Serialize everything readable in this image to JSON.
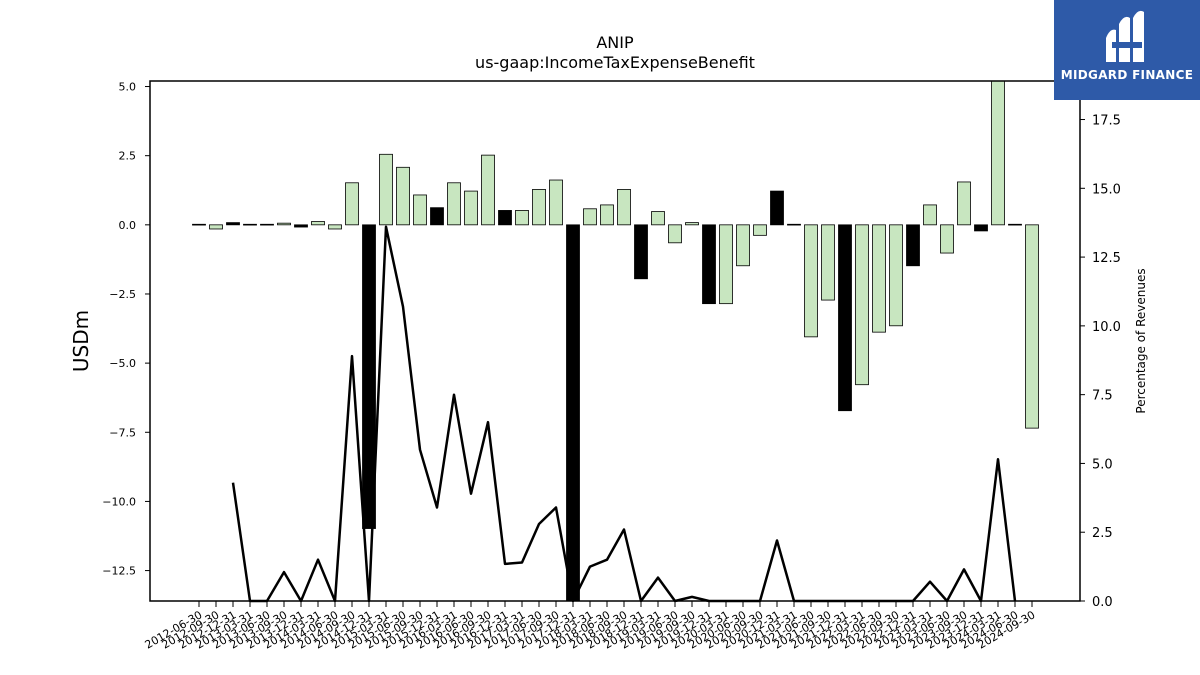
{
  "chart_data": {
    "type": "bar",
    "title": "ANIP",
    "subtitle": "us-gaap:IncomeTaxExpenseBenefit",
    "ylabel": "USDm",
    "y2label": "Percentage of Revenues",
    "ylim": [
      -13.6,
      5.2
    ],
    "y2lim": [
      0,
      18.9
    ],
    "yticks": [
      "5.0",
      "2.5",
      "0.0",
      "−2.5",
      "−5.0",
      "−7.5",
      "−10.0",
      "−12.5"
    ],
    "y2ticks": [
      "0.0",
      "2.5",
      "5.0",
      "7.5",
      "10.0",
      "12.5",
      "15.0",
      "17.5"
    ],
    "categories": [
      "2012-06-30",
      "2012-09-30",
      "2012-12-31",
      "2013-03-31",
      "2013-06-30",
      "2013-09-30",
      "2013-12-31",
      "2014-03-31",
      "2014-06-30",
      "2014-09-30",
      "2014-12-31",
      "2015-03-31",
      "2015-06-30",
      "2015-09-30",
      "2015-12-31",
      "2016-03-31",
      "2016-06-30",
      "2016-09-30",
      "2016-12-31",
      "2017-03-31",
      "2017-06-30",
      "2017-09-30",
      "2017-12-31",
      "2018-03-31",
      "2018-06-30",
      "2018-09-30",
      "2018-12-31",
      "2019-03-31",
      "2019-06-30",
      "2019-09-30",
      "2019-12-31",
      "2020-03-31",
      "2020-06-30",
      "2020-09-30",
      "2020-12-31",
      "2021-03-31",
      "2021-06-30",
      "2021-09-30",
      "2021-12-31",
      "2022-03-31",
      "2022-06-30",
      "2022-09-30",
      "2022-12-31",
      "2023-03-31",
      "2023-06-30",
      "2023-09-30",
      "2023-12-31",
      "2024-03-31",
      "2024-06-30",
      "2024-09-30"
    ],
    "series": [
      {
        "values": [
          0.02,
          -0.15,
          0.08,
          0.02,
          0.02,
          0.06,
          -0.08,
          0.12,
          -0.15,
          1.52,
          -10.98,
          2.55,
          2.08,
          1.08,
          0.62,
          1.52,
          1.22,
          2.52,
          0.52,
          0.52,
          1.28,
          1.62,
          -13.6,
          0.58,
          0.72,
          1.28,
          -1.95,
          0.48,
          -0.65,
          0.08,
          -2.85,
          -2.85,
          -1.48,
          -0.38,
          1.22,
          0.02,
          -4.05,
          -2.72,
          -6.72,
          -5.78,
          -3.88,
          -3.65,
          -1.48,
          0.72,
          -1.02,
          1.55,
          -0.22,
          5.2,
          0.02,
          -7.35
        ],
        "colors": [
          "light",
          "light",
          "dark",
          "light",
          "light",
          "light",
          "dark",
          "light",
          "light",
          "light",
          "dark",
          "light",
          "light",
          "light",
          "dark",
          "light",
          "light",
          "light",
          "dark",
          "light",
          "light",
          "light",
          "dark",
          "light",
          "light",
          "light",
          "dark",
          "light",
          "light",
          "light",
          "dark",
          "light",
          "light",
          "light",
          "dark",
          "light",
          "light",
          "light",
          "dark",
          "light",
          "light",
          "light",
          "dark",
          "light",
          "light",
          "light",
          "dark",
          "light",
          "light",
          "light"
        ]
      },
      {
        "values": [
          0.0,
          null,
          4.3,
          0.0,
          0.0,
          1.05,
          0.0,
          1.5,
          0.0,
          8.9,
          0.0,
          13.6,
          10.7,
          5.5,
          3.4,
          7.5,
          3.9,
          6.5,
          1.35,
          1.4,
          2.8,
          3.4,
          0.0,
          1.25,
          1.5,
          2.6,
          0.0,
          0.85,
          0.0,
          0.15,
          0.0,
          0.0,
          0.0,
          0.0,
          2.2,
          0.0,
          0.0,
          0.0,
          0.0,
          0.0,
          0.0,
          0.0,
          0.0,
          0.7,
          0.0,
          1.15,
          0.0,
          5.15,
          0.0,
          null
        ]
      }
    ],
    "colors": {
      "light": "#c8e6c0",
      "dark": "#000000",
      "line": "#000000",
      "logo_bg": "#2e5aa8"
    },
    "grid": false
  },
  "logo": {
    "text": "MIDGARD FINANCE",
    "icon": "midgard-logo-icon"
  }
}
